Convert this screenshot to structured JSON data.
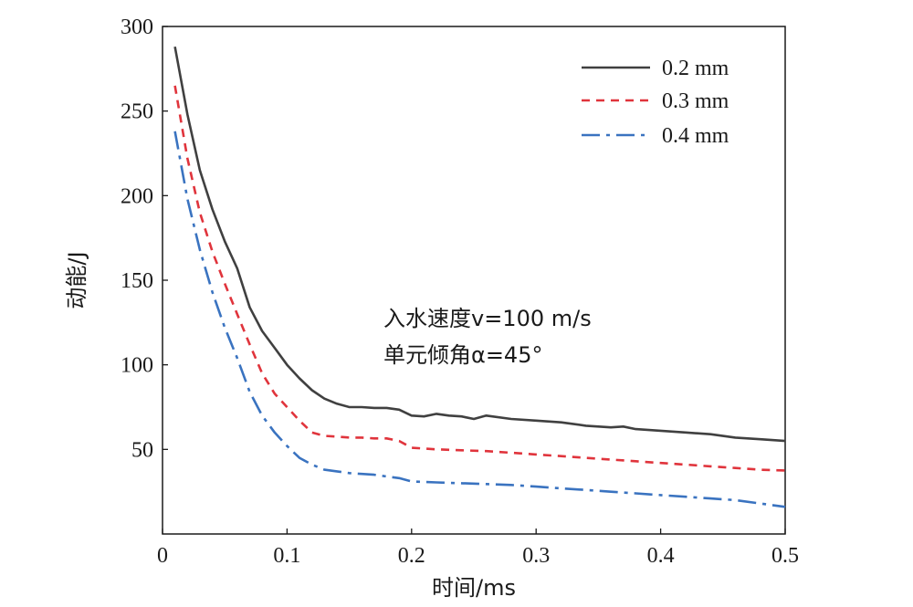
{
  "chart_data": {
    "type": "line",
    "xlabel": "时间/ms",
    "ylabel": "动能/J",
    "xlim": [
      0,
      0.5
    ],
    "ylim": [
      0,
      300
    ],
    "x_ticks": [
      "0",
      "0.1",
      "0.2",
      "0.3",
      "0.4",
      "0.5"
    ],
    "y_ticks": [
      "50",
      "100",
      "150",
      "200",
      "250",
      "300"
    ],
    "grid": false,
    "legend_position": "top-right",
    "annotations": [
      "入水速度v=100 m/s",
      "单元倾角α=45°"
    ],
    "series": [
      {
        "name": "0.2 mm",
        "color": "#404040",
        "style": "solid",
        "x": [
          0.01,
          0.02,
          0.03,
          0.04,
          0.05,
          0.06,
          0.07,
          0.08,
          0.09,
          0.1,
          0.11,
          0.12,
          0.13,
          0.14,
          0.15,
          0.16,
          0.17,
          0.18,
          0.19,
          0.2,
          0.21,
          0.22,
          0.23,
          0.24,
          0.25,
          0.26,
          0.28,
          0.3,
          0.32,
          0.34,
          0.36,
          0.37,
          0.38,
          0.4,
          0.42,
          0.44,
          0.46,
          0.48,
          0.5
        ],
        "y": [
          288,
          248,
          215,
          192,
          173,
          157,
          134,
          120,
          110,
          100,
          92,
          85,
          80,
          77,
          75,
          75,
          74.5,
          74.5,
          73.5,
          70,
          69.5,
          71,
          70,
          69.5,
          68,
          70,
          68,
          67,
          66,
          64,
          63,
          63.5,
          62,
          61,
          60,
          59,
          57,
          56,
          55
        ]
      },
      {
        "name": "0.3 mm",
        "color": "#e0343c",
        "style": "dashed",
        "x": [
          0.01,
          0.02,
          0.03,
          0.04,
          0.05,
          0.06,
          0.07,
          0.08,
          0.09,
          0.1,
          0.11,
          0.12,
          0.13,
          0.14,
          0.15,
          0.16,
          0.17,
          0.18,
          0.19,
          0.2,
          0.22,
          0.24,
          0.26,
          0.28,
          0.3,
          0.32,
          0.34,
          0.36,
          0.38,
          0.4,
          0.42,
          0.44,
          0.46,
          0.48,
          0.5
        ],
        "y": [
          265,
          222,
          190,
          167,
          148,
          130,
          112,
          95,
          83,
          75,
          67,
          60,
          58,
          57.5,
          57,
          57,
          56.5,
          56.5,
          55,
          51,
          50,
          49.5,
          49,
          48,
          47,
          46,
          45,
          44,
          43,
          42,
          41,
          40,
          39,
          38,
          37.5
        ]
      },
      {
        "name": "0.4 mm",
        "color": "#3a73c0",
        "style": "dashdot",
        "x": [
          0.01,
          0.02,
          0.03,
          0.04,
          0.05,
          0.06,
          0.07,
          0.08,
          0.09,
          0.1,
          0.11,
          0.12,
          0.13,
          0.14,
          0.15,
          0.16,
          0.17,
          0.18,
          0.19,
          0.2,
          0.22,
          0.24,
          0.26,
          0.28,
          0.3,
          0.32,
          0.34,
          0.36,
          0.38,
          0.4,
          0.42,
          0.44,
          0.46,
          0.48,
          0.5
        ],
        "y": [
          238,
          198,
          168,
          143,
          122,
          104,
          84,
          70,
          60,
          52,
          45,
          41,
          38,
          37,
          36,
          35.5,
          35,
          34,
          33,
          31,
          30.5,
          30,
          29.5,
          29,
          28,
          27,
          26,
          25,
          24,
          23,
          22,
          21,
          20,
          18,
          16
        ]
      }
    ]
  }
}
